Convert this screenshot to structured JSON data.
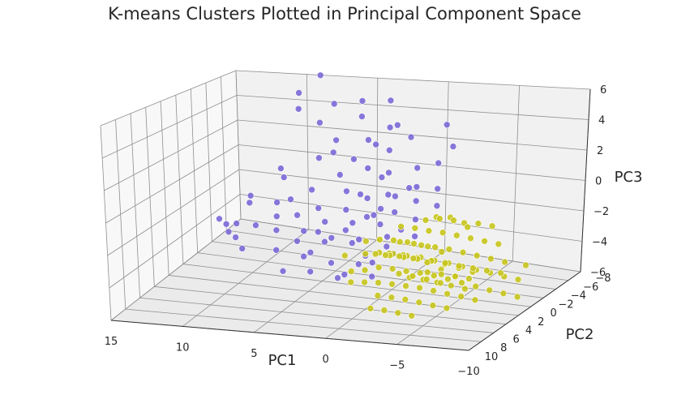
{
  "chart_data": {
    "type": "scatter",
    "title": "K-means Clusters Plotted in Principal Component Space",
    "xlabel": "PC1",
    "ylabel": "PC2",
    "zlabel": "PC3",
    "xlim": [
      15,
      -10
    ],
    "ylim": [
      -8,
      10
    ],
    "zlim": [
      -6,
      6
    ],
    "x_ticks": [
      "15",
      "10",
      "5",
      "0",
      "−5",
      "−10"
    ],
    "y_ticks": [
      "−8",
      "−6",
      "−4",
      "−2",
      "0",
      "2",
      "4",
      "6",
      "8",
      "10"
    ],
    "z_ticks": [
      "−6",
      "−4",
      "−2",
      "0",
      "2",
      "4",
      "6"
    ],
    "grid": true,
    "colors": {
      "cluster_a": "#7b68d6",
      "cluster_b": "#c8c51c"
    },
    "series": [
      {
        "color_key": "cluster_a",
        "points": [
          [
            12.8,
            -2,
            -3.5
          ],
          [
            11.5,
            -3,
            -1.5
          ],
          [
            12.2,
            0,
            -2.2
          ],
          [
            10.5,
            -1,
            -1
          ],
          [
            11,
            1,
            -2.5
          ],
          [
            9.8,
            -4,
            0.5
          ],
          [
            9.5,
            -6,
            5.5
          ],
          [
            9,
            -5,
            4.8
          ],
          [
            8.5,
            -7,
            6.5
          ],
          [
            7.5,
            -5,
            4
          ],
          [
            7,
            -6,
            5
          ],
          [
            6.5,
            -3,
            2.5
          ],
          [
            5.8,
            -4,
            3.5
          ],
          [
            5,
            -6,
            5.5
          ],
          [
            4.5,
            -5,
            5
          ],
          [
            4,
            -3,
            3
          ],
          [
            3.5,
            -4,
            4
          ],
          [
            3,
            -6,
            5.8
          ],
          [
            2.5,
            -5,
            4.5
          ],
          [
            2,
            -4,
            3.5
          ],
          [
            1.5,
            -3,
            2.5
          ],
          [
            1,
            -5,
            4
          ],
          [
            0.5,
            -2,
            1.5
          ],
          [
            0,
            -4,
            2.5
          ],
          [
            -0.5,
            -3,
            1.8
          ],
          [
            -1,
            -6,
            4.5
          ],
          [
            -1.5,
            -4,
            3.2
          ],
          [
            -2,
            -5,
            3.8
          ],
          [
            -0.5,
            -2,
            2.5
          ],
          [
            1,
            -1,
            1
          ],
          [
            2,
            -1,
            0
          ],
          [
            3,
            0,
            -0.8
          ],
          [
            4,
            1,
            -1.5
          ],
          [
            5,
            0,
            -1.5
          ],
          [
            6,
            1,
            -2
          ],
          [
            7,
            2,
            -2.5
          ],
          [
            8,
            0,
            -1
          ],
          [
            9,
            1,
            -1.5
          ],
          [
            6.5,
            -2,
            0.5
          ],
          [
            5.5,
            -1,
            -0.2
          ],
          [
            4.5,
            2,
            -2
          ],
          [
            3.5,
            1,
            -1
          ],
          [
            2.5,
            0,
            0
          ],
          [
            1.5,
            1,
            -0.5
          ],
          [
            0.5,
            0,
            0.5
          ],
          [
            -0.5,
            1,
            -0.5
          ],
          [
            -1,
            0,
            0.5
          ],
          [
            -1.5,
            -1,
            0.8
          ],
          [
            0,
            2,
            -1.5
          ],
          [
            1,
            2,
            -2
          ],
          [
            2,
            3,
            -3
          ],
          [
            3,
            2,
            -2.5
          ],
          [
            4,
            3,
            -3
          ],
          [
            7.5,
            -1,
            0
          ],
          [
            8.5,
            -2,
            1
          ],
          [
            6,
            -4,
            2.5
          ],
          [
            5,
            -3,
            1.5
          ],
          [
            3,
            -2,
            1
          ],
          [
            2,
            -3,
            2
          ],
          [
            1,
            -2,
            1.5
          ],
          [
            0,
            -1,
            1
          ],
          [
            -1,
            -2,
            1.5
          ],
          [
            -2,
            -3,
            2
          ],
          [
            -2.5,
            -2,
            1.5
          ],
          [
            -2,
            0,
            0.2
          ],
          [
            -1,
            1,
            -1
          ],
          [
            0,
            0,
            -0.5
          ],
          [
            1.5,
            -1,
            0.3
          ],
          [
            2.5,
            -2,
            0.8
          ],
          [
            3.5,
            -1,
            0.2
          ],
          [
            4.5,
            0,
            -0.5
          ],
          [
            5.5,
            1,
            -1
          ],
          [
            6.5,
            0,
            -0.5
          ],
          [
            7.5,
            1,
            -1.5
          ],
          [
            8.5,
            -1,
            -0.5
          ],
          [
            2,
            1,
            -1
          ],
          [
            3,
            -3,
            2.5
          ],
          [
            4,
            -2,
            1
          ],
          [
            0.5,
            2,
            -1
          ],
          [
            -0.5,
            3,
            -2
          ],
          [
            1.5,
            3,
            -2.5
          ],
          [
            9.5,
            2,
            -3
          ],
          [
            10.5,
            1,
            -2.8
          ],
          [
            11.5,
            -1,
            -2.8
          ],
          [
            5,
            2,
            -2.5
          ],
          [
            6,
            3,
            -3.5
          ],
          [
            3.5,
            -5,
            3
          ],
          [
            2.5,
            -6,
            4
          ]
        ]
      },
      {
        "color_key": "cluster_b",
        "points": [
          [
            2,
            2,
            -1.5
          ],
          [
            1,
            3,
            -2
          ],
          [
            0.5,
            2,
            -0.8
          ],
          [
            0,
            3,
            -1.5
          ],
          [
            -0.5,
            2,
            -0.3
          ],
          [
            -1,
            3,
            -0.8
          ],
          [
            -1.5,
            2,
            0
          ],
          [
            -2,
            3,
            -0.5
          ],
          [
            -2.5,
            2,
            0.2
          ],
          [
            -3,
            3,
            -0.3
          ],
          [
            -3.5,
            2,
            0.5
          ],
          [
            -4,
            3,
            0
          ],
          [
            -4.5,
            2,
            0.6
          ],
          [
            -5,
            3,
            0.2
          ],
          [
            -5.5,
            2,
            0.8
          ],
          [
            -6,
            3,
            0.3
          ],
          [
            -6.5,
            2,
            0.9
          ],
          [
            -7,
            3,
            0.4
          ],
          [
            -7.5,
            2,
            1
          ],
          [
            -8,
            3,
            0.5
          ],
          [
            -8.5,
            2,
            1.2
          ],
          [
            -9,
            3,
            0.6
          ],
          [
            -9.5,
            2,
            1.3
          ],
          [
            -10,
            3,
            0.8
          ],
          [
            1,
            1,
            -0.5
          ],
          [
            0,
            1,
            0
          ],
          [
            -1,
            1,
            0.3
          ],
          [
            -2,
            1,
            0.5
          ],
          [
            -3,
            1,
            0.6
          ],
          [
            -4,
            1,
            0.8
          ],
          [
            -5,
            1,
            1
          ],
          [
            -6,
            1,
            1.1
          ],
          [
            -7,
            1,
            1.2
          ],
          [
            -8,
            1,
            1.3
          ],
          [
            -9,
            1,
            1.4
          ],
          [
            0.5,
            4,
            -2.2
          ],
          [
            -0.5,
            4,
            -1.8
          ],
          [
            -1.5,
            4,
            -1.4
          ],
          [
            -2.5,
            4,
            -1.1
          ],
          [
            -3.5,
            4,
            -0.8
          ],
          [
            -4.5,
            4,
            -0.5
          ],
          [
            -5.5,
            4,
            -0.3
          ],
          [
            -6.5,
            4,
            -0.1
          ],
          [
            -7.5,
            4,
            0.2
          ],
          [
            -8.5,
            4,
            0.4
          ],
          [
            -1,
            0,
            0.8
          ],
          [
            -2,
            0,
            1
          ],
          [
            -3,
            0,
            1.1
          ],
          [
            -4,
            0,
            1.3
          ],
          [
            -5,
            0,
            1.4
          ],
          [
            -6,
            0,
            1.5
          ],
          [
            -7,
            0,
            1.6
          ],
          [
            -8,
            0,
            1.7
          ],
          [
            -2,
            5,
            -1.8
          ],
          [
            -3,
            5,
            -1.5
          ],
          [
            -4,
            5,
            -1.2
          ],
          [
            -5,
            5,
            -1
          ],
          [
            -6,
            5,
            -0.8
          ],
          [
            -7,
            5,
            -0.5
          ],
          [
            -3,
            -1,
            1.5
          ],
          [
            -4,
            -1,
            1.8
          ],
          [
            -5,
            -1,
            1.6
          ],
          [
            -6,
            -1,
            1.9
          ],
          [
            -7,
            -1,
            2
          ],
          [
            -1.5,
            2.5,
            0.5
          ],
          [
            -2.5,
            2.5,
            0.8
          ],
          [
            -3.5,
            2.5,
            1
          ],
          [
            -4.5,
            2.5,
            1.2
          ],
          [
            -5.5,
            2.5,
            1.3
          ],
          [
            -6.5,
            2.5,
            1.4
          ],
          [
            -7.5,
            2.5,
            1.5
          ],
          [
            -1,
            1.5,
            -0.8
          ],
          [
            -2,
            1.5,
            -0.6
          ],
          [
            -3,
            1.5,
            -0.4
          ],
          [
            -4,
            1.5,
            -0.2
          ],
          [
            -5,
            1.5,
            0
          ],
          [
            -6,
            1.5,
            0.1
          ],
          [
            -7,
            1.5,
            0.3
          ],
          [
            -8,
            1.5,
            0.5
          ],
          [
            -9,
            1.5,
            0.7
          ],
          [
            -3.5,
            3.5,
            -0.3
          ],
          [
            -4.5,
            3.5,
            0
          ],
          [
            -5.5,
            3.5,
            0.2
          ],
          [
            -6.5,
            3.5,
            0.4
          ],
          [
            -7.5,
            3.5,
            0.6
          ],
          [
            -2,
            6,
            -2.5
          ],
          [
            -3,
            6,
            -2.2
          ],
          [
            -4,
            6,
            -2
          ],
          [
            -5,
            6,
            -1.8
          ],
          [
            -2.5,
            -0.5,
            1.5
          ],
          [
            -3.5,
            -0.5,
            2
          ],
          [
            -4.5,
            -0.5,
            2.2
          ],
          [
            -5.5,
            -0.5,
            1.9
          ],
          [
            -1.5,
            3,
            0.8
          ],
          [
            -2.5,
            3,
            1.2
          ],
          [
            -3.5,
            3,
            1.5
          ],
          [
            -4.5,
            3,
            1.6
          ],
          [
            -5.5,
            3,
            1.3
          ],
          [
            -6.5,
            3,
            1
          ],
          [
            -0.5,
            2.5,
            0
          ],
          [
            -4,
            2,
            -1
          ],
          [
            -5,
            2,
            -0.8
          ],
          [
            -6,
            2,
            -0.6
          ],
          [
            -7,
            2,
            -0.4
          ],
          [
            -3,
            4,
            0.5
          ],
          [
            -4,
            4,
            0.8
          ],
          [
            -5,
            4,
            1
          ],
          [
            -6,
            4,
            1.2
          ],
          [
            -2,
            2,
            1.5
          ],
          [
            -3,
            2,
            1.8
          ],
          [
            -4,
            2,
            2
          ],
          [
            -5,
            2,
            1.9
          ],
          [
            -10.5,
            2,
            1.5
          ],
          [
            -11,
            3,
            1
          ],
          [
            -10.5,
            1,
            1.8
          ]
        ]
      }
    ]
  }
}
